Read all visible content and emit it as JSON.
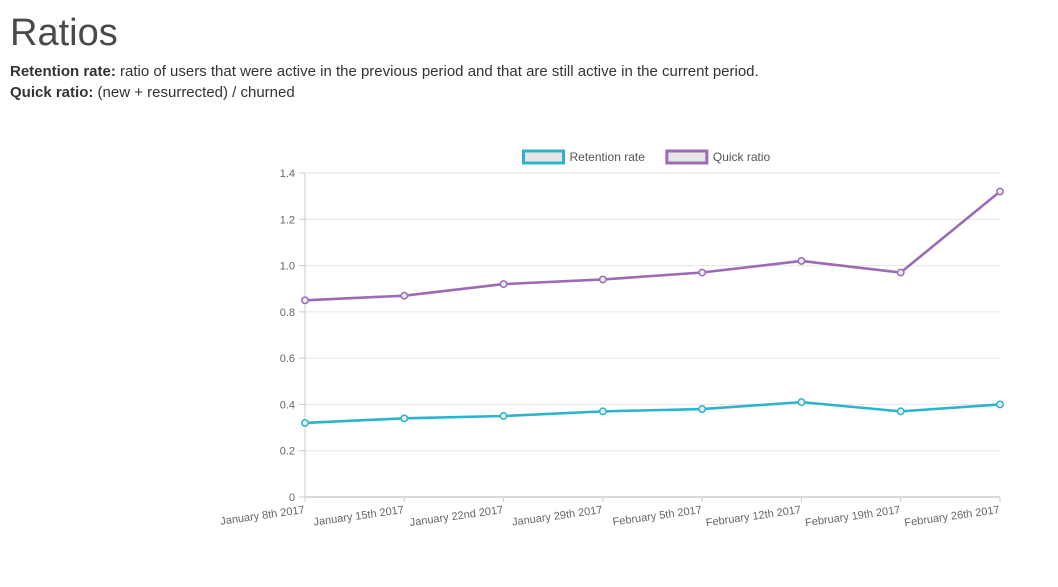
{
  "page": {
    "title": "Ratios",
    "definitions": [
      {
        "term": "Retention rate:",
        "text": "ratio of users that were active in the previous period and that are still active in the current period."
      },
      {
        "term": "Quick ratio:",
        "text": "(new + resurrected) / churned"
      }
    ]
  },
  "chart_data": {
    "type": "line",
    "title": "",
    "xlabel": "",
    "ylabel": "",
    "categories": [
      "January 8th 2017",
      "January 15th 2017",
      "January 22nd 2017",
      "January 29th 2017",
      "February 5th 2017",
      "February 12th 2017",
      "February 19th 2017",
      "February 26th 2017"
    ],
    "series": [
      {
        "name": "Retention rate",
        "color": "#2bb4cb",
        "values": [
          0.32,
          0.34,
          0.35,
          0.37,
          0.38,
          0.41,
          0.37,
          0.4
        ]
      },
      {
        "name": "Quick ratio",
        "color": "#9b6bb8",
        "values": [
          0.85,
          0.87,
          0.92,
          0.94,
          0.97,
          1.02,
          0.97,
          1.32
        ]
      }
    ],
    "ylim": [
      0,
      1.4
    ],
    "yticks": [
      "0",
      "0.2",
      "0.4",
      "0.6",
      "0.8",
      "1.0",
      "1.2",
      "1.4"
    ],
    "grid": true,
    "legend_position": "top-center"
  }
}
